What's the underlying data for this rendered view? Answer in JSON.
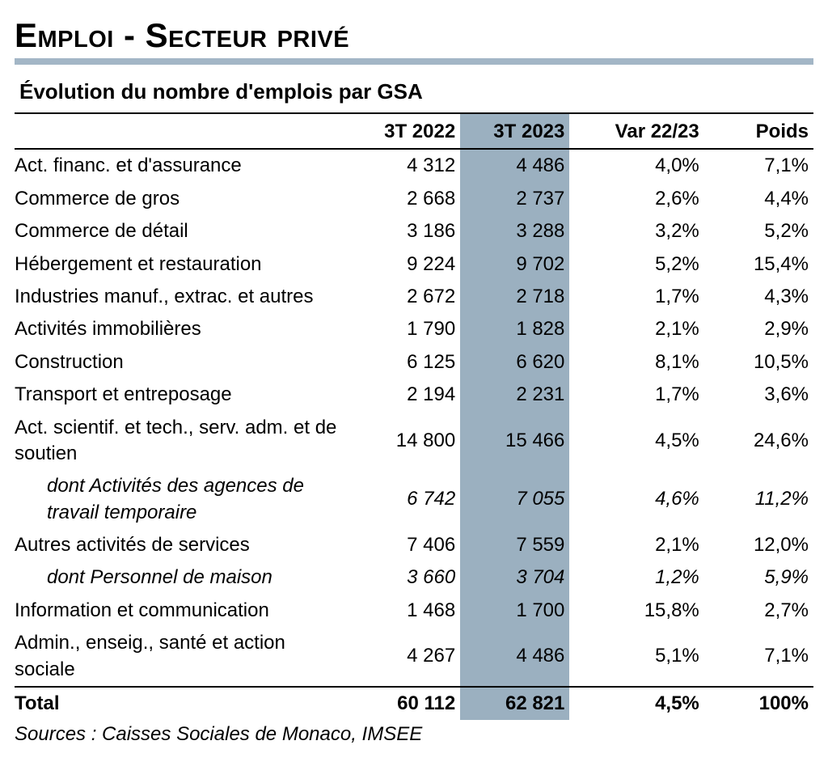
{
  "title": "Emploi - Secteur privé",
  "subtitle": "Évolution du nombre d'emplois par GSA",
  "columns": [
    "3T 2022",
    "3T 2023",
    "Var 22/23",
    "Poids"
  ],
  "highlight_column_index": 1,
  "highlight_color": "#9bb0c0",
  "rule_color": "#a3b6c6",
  "rows": [
    {
      "label": "Act. financ. et d'assurance",
      "v1": "4 312",
      "v2": "4 486",
      "var": "4,0%",
      "poids": "7,1%",
      "sub": false
    },
    {
      "label": "Commerce de gros",
      "v1": "2 668",
      "v2": "2 737",
      "var": "2,6%",
      "poids": "4,4%",
      "sub": false
    },
    {
      "label": "Commerce de détail",
      "v1": "3 186",
      "v2": "3 288",
      "var": "3,2%",
      "poids": "5,2%",
      "sub": false
    },
    {
      "label": "Hébergement et restauration",
      "v1": "9 224",
      "v2": "9 702",
      "var": "5,2%",
      "poids": "15,4%",
      "sub": false
    },
    {
      "label": "Industries manuf., extrac. et autres",
      "v1": "2 672",
      "v2": "2 718",
      "var": "1,7%",
      "poids": "4,3%",
      "sub": false
    },
    {
      "label": "Activités immobilières",
      "v1": "1 790",
      "v2": "1 828",
      "var": "2,1%",
      "poids": "2,9%",
      "sub": false
    },
    {
      "label": "Construction",
      "v1": "6 125",
      "v2": "6 620",
      "var": "8,1%",
      "poids": "10,5%",
      "sub": false
    },
    {
      "label": "Transport et entreposage",
      "v1": "2 194",
      "v2": "2 231",
      "var": "1,7%",
      "poids": "3,6%",
      "sub": false
    },
    {
      "label": "Act. scientif. et tech., serv. adm. et de soutien",
      "v1": "14 800",
      "v2": "15 466",
      "var": "4,5%",
      "poids": "24,6%",
      "sub": false
    },
    {
      "label": "dont Activités des agences de travail temporaire",
      "v1": "6 742",
      "v2": "7 055",
      "var": "4,6%",
      "poids": "11,2%",
      "sub": true
    },
    {
      "label": "Autres activités de services",
      "v1": "7 406",
      "v2": "7 559",
      "var": "2,1%",
      "poids": "12,0%",
      "sub": false
    },
    {
      "label": "dont Personnel de maison",
      "v1": "3 660",
      "v2": "3 704",
      "var": "1,2%",
      "poids": "5,9%",
      "sub": true
    },
    {
      "label": "Information et communication",
      "v1": "1 468",
      "v2": "1 700",
      "var": "15,8%",
      "poids": "2,7%",
      "sub": false
    },
    {
      "label": "Admin., enseig., santé et action sociale",
      "v1": "4 267",
      "v2": "4 486",
      "var": "5,1%",
      "poids": "7,1%",
      "sub": false
    }
  ],
  "total": {
    "label": "Total",
    "v1": "60 112",
    "v2": "62 821",
    "var": "4,5%",
    "poids": "100%"
  },
  "source": "Sources : Caisses Sociales de Monaco, IMSEE"
}
